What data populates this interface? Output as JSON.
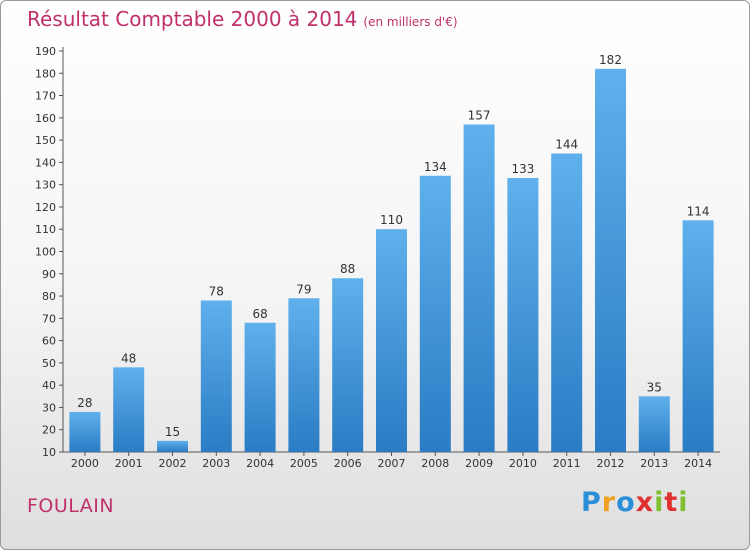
{
  "chart_data": {
    "type": "bar",
    "title": "Résultat Comptable 2000 à 2014",
    "subtitle": "(en milliers d'€)",
    "categories": [
      "2000",
      "2001",
      "2002",
      "2003",
      "2004",
      "2005",
      "2006",
      "2007",
      "2008",
      "2009",
      "2010",
      "2011",
      "2012",
      "2013",
      "2014"
    ],
    "values": [
      28,
      48,
      15,
      78,
      68,
      79,
      88,
      110,
      134,
      157,
      133,
      144,
      182,
      35,
      114
    ],
    "ylim": [
      10,
      190
    ],
    "yticks": [
      10,
      20,
      30,
      40,
      50,
      60,
      70,
      80,
      90,
      100,
      110,
      120,
      130,
      140,
      150,
      160,
      170,
      180,
      190
    ],
    "grid": false,
    "bar_color": "#3d8fd6"
  },
  "footer": {
    "commune": "FOULAIN",
    "logo_letters": [
      "P",
      "r",
      "o",
      "x",
      "i",
      "t",
      "i"
    ],
    "logo_colors": [
      "#2a8fd8",
      "#f0a020",
      "#2a8fd8",
      "#e03030",
      "#80c030",
      "#e03030",
      "#80c030"
    ]
  }
}
